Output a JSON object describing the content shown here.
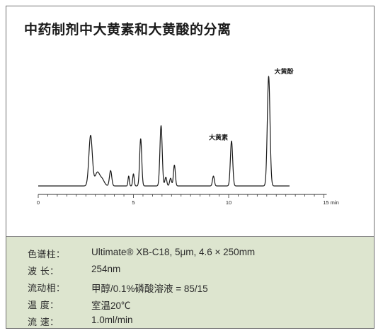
{
  "chart_data": {
    "type": "line",
    "title": "中药制剂中大黄素和大黄酸的分离",
    "x_unit": "min",
    "xlim": [
      0,
      15
    ],
    "x_ticks": [
      0,
      5,
      10,
      15
    ],
    "x_tick_labels": [
      "0",
      "5",
      "10",
      "15 min"
    ],
    "ylim": [
      0,
      1
    ],
    "baseline": 0.0,
    "trace_end": 13.2,
    "peaks": [
      {
        "t": 2.75,
        "h": 0.46,
        "w": 0.09
      },
      {
        "t": 3.1,
        "h": 0.12,
        "w": 0.12
      },
      {
        "t": 3.35,
        "h": 0.06,
        "w": 0.12
      },
      {
        "t": 3.8,
        "h": 0.14,
        "w": 0.06
      },
      {
        "t": 4.75,
        "h": 0.09,
        "w": 0.035
      },
      {
        "t": 5.0,
        "h": 0.11,
        "w": 0.04
      },
      {
        "t": 5.38,
        "h": 0.43,
        "w": 0.055
      },
      {
        "t": 6.45,
        "h": 0.55,
        "w": 0.06
      },
      {
        "t": 6.7,
        "h": 0.08,
        "w": 0.05
      },
      {
        "t": 6.95,
        "h": 0.07,
        "w": 0.05
      },
      {
        "t": 7.15,
        "h": 0.19,
        "w": 0.05
      },
      {
        "t": 9.2,
        "h": 0.09,
        "w": 0.05
      },
      {
        "t": 10.15,
        "h": 0.41,
        "w": 0.06
      },
      {
        "t": 12.1,
        "h": 1.0,
        "w": 0.07
      }
    ],
    "annotations": [
      {
        "text": "大黄素",
        "t": 10.15
      },
      {
        "text": "大黄酚",
        "t": 12.1
      }
    ]
  },
  "conditions": [
    {
      "label": "色谱柱：",
      "value": "Ultimate® XB-C18, 5μm, 4.6 × 250mm"
    },
    {
      "label": "波   长：",
      "value": "254nm"
    },
    {
      "label": "流动相：",
      "value": "甲醇/0.1%磷酸溶液 = 85/15"
    },
    {
      "label": "温   度：",
      "value": "室温20℃"
    },
    {
      "label": "流   速：",
      "value": "1.0ml/min"
    }
  ]
}
